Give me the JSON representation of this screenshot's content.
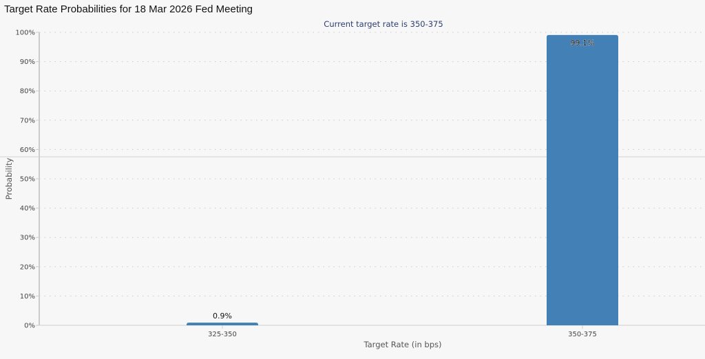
{
  "title": "Target Rate Probabilities for 18 Mar 2026 Fed Meeting",
  "chart_data": {
    "type": "bar",
    "subtitle": "Current target rate is 350-375",
    "categories": [
      "325-350",
      "350-375"
    ],
    "values": [
      0.9,
      99.1
    ],
    "data_labels": [
      "0.9%",
      "99.1%"
    ],
    "xlabel": "Target Rate (in bps)",
    "ylabel": "Probability",
    "ylim": [
      0,
      100
    ],
    "yticks": [
      "0%",
      "10%",
      "20%",
      "30%",
      "40%",
      "50%",
      "60%",
      "70%",
      "80%",
      "90%",
      "100%"
    ],
    "grid": true,
    "bar_color": "#4380b6"
  }
}
